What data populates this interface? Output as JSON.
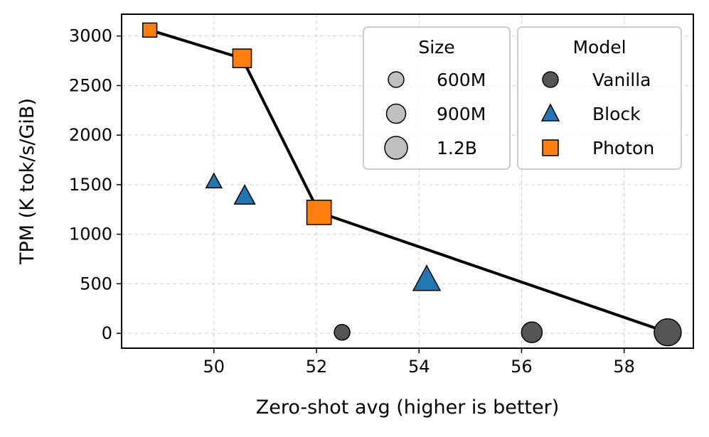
{
  "chart_data": {
    "type": "scatter",
    "title": "",
    "xlabel": "Zero-shot avg (higher is better)",
    "ylabel": "TPM (K tok/s/GiB)",
    "xlim": [
      48.2,
      59.35
    ],
    "ylim": [
      -150,
      3220
    ],
    "xticks": [
      50,
      52,
      54,
      56,
      58
    ],
    "yticks": [
      0,
      500,
      1000,
      1500,
      2000,
      2500,
      3000
    ],
    "grid": true,
    "colors": {
      "Vanilla": "#555555",
      "Block": "#1f77b4",
      "Photon": "#ff7f0e",
      "frontier": "#000000",
      "size_legend": "#c0c0c0"
    },
    "series": [
      {
        "name": "Vanilla",
        "marker": "circle",
        "points": [
          {
            "size": "600M",
            "x": 52.5,
            "y": 10
          },
          {
            "size": "900M",
            "x": 56.2,
            "y": 10
          },
          {
            "size": "1.2B",
            "x": 58.85,
            "y": 10
          }
        ]
      },
      {
        "name": "Block",
        "marker": "triangle",
        "points": [
          {
            "size": "600M",
            "x": 50.0,
            "y": 1530
          },
          {
            "size": "900M",
            "x": 50.6,
            "y": 1385
          },
          {
            "size": "1.2B",
            "x": 54.15,
            "y": 540
          }
        ]
      },
      {
        "name": "Photon",
        "marker": "square",
        "points": [
          {
            "size": "600M",
            "x": 48.75,
            "y": 3060
          },
          {
            "size": "900M",
            "x": 50.55,
            "y": 2775
          },
          {
            "size": "1.2B",
            "x": 52.05,
            "y": 1220
          }
        ]
      }
    ],
    "frontier": [
      {
        "x": 48.75,
        "y": 3060
      },
      {
        "x": 50.55,
        "y": 2775
      },
      {
        "x": 52.05,
        "y": 1220
      },
      {
        "x": 58.85,
        "y": 10
      }
    ],
    "legend_size": {
      "title": "Size",
      "entries": [
        "600M",
        "900M",
        "1.2B"
      ]
    },
    "legend_model": {
      "title": "Model",
      "entries": [
        "Vanilla",
        "Block",
        "Photon"
      ]
    }
  }
}
